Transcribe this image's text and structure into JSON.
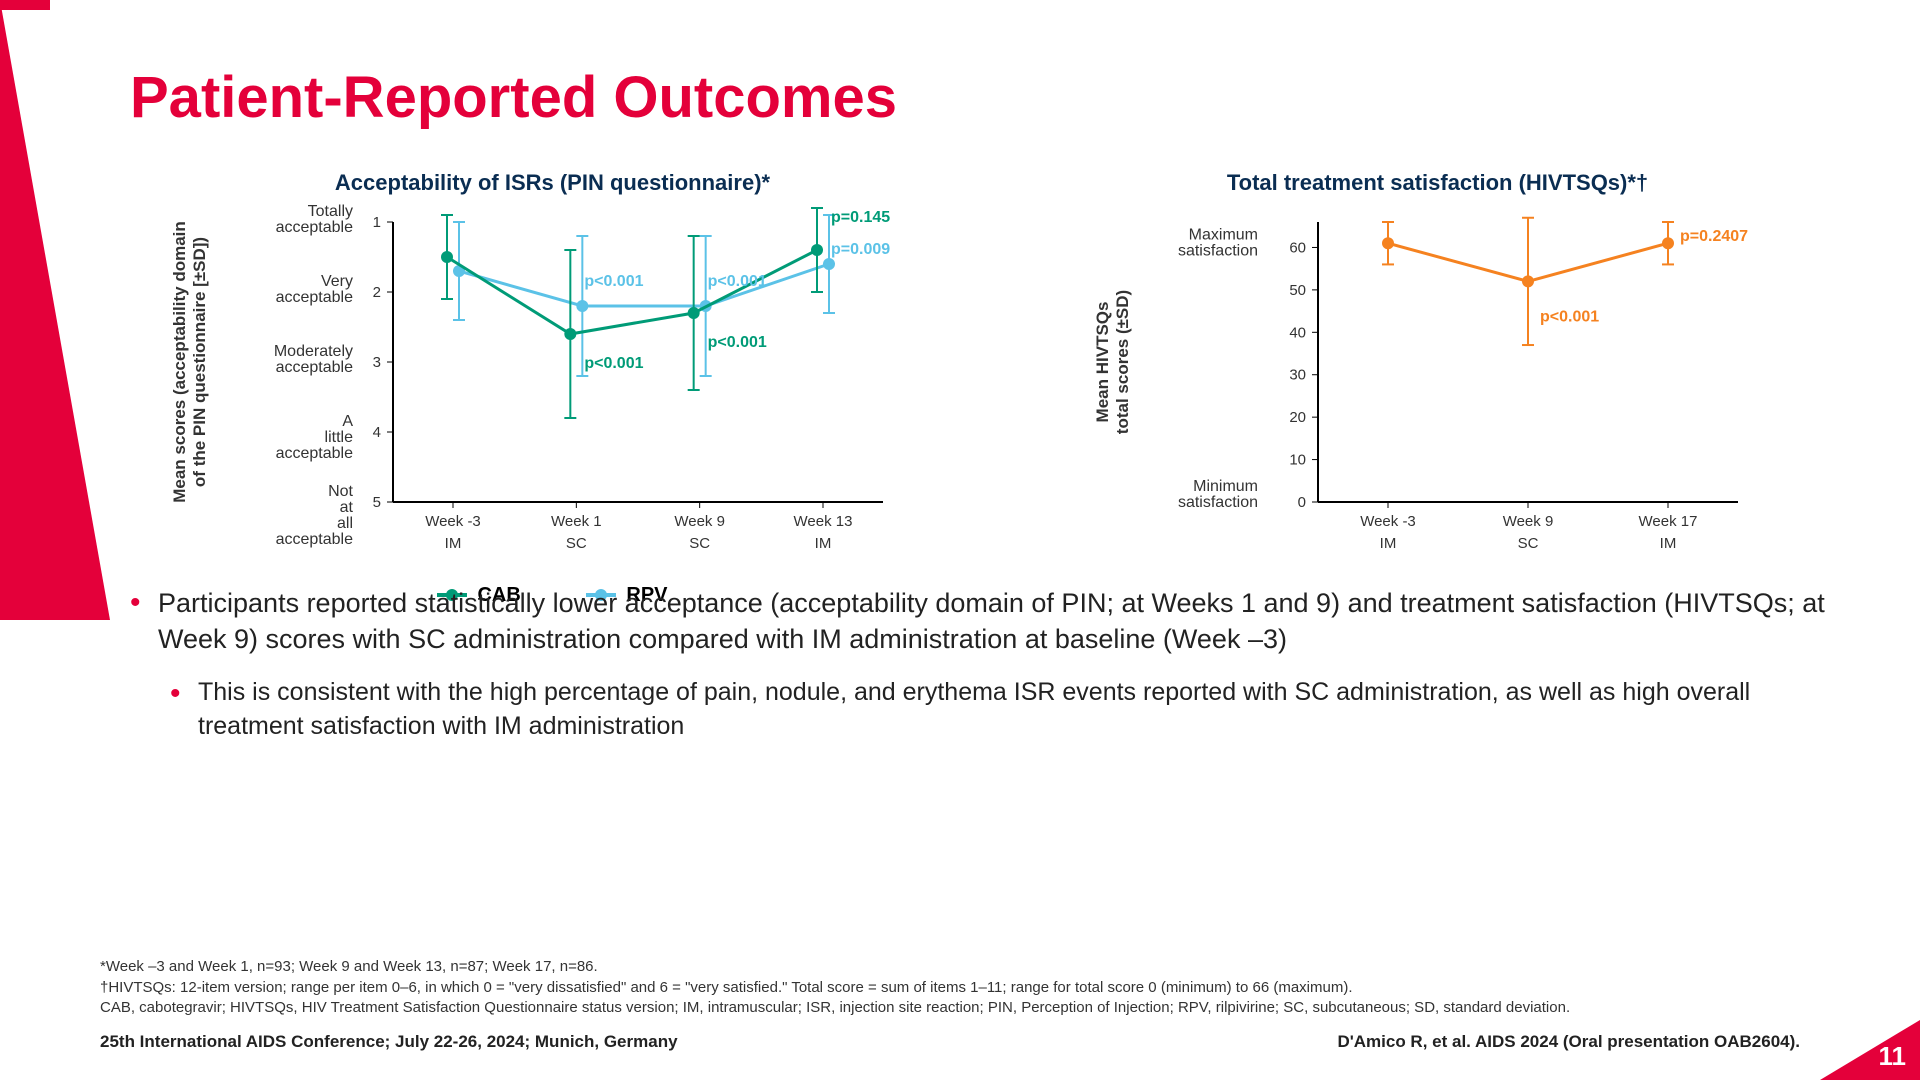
{
  "title": "Patient-Reported Outcomes",
  "page_number": "11",
  "colors": {
    "accent": "#e4003a",
    "cab": "#009b77",
    "rpv": "#5bc2e7",
    "hivtsq": "#f58220",
    "navy": "#0a2d52"
  },
  "chart1": {
    "title": "Acceptability of ISRs (PIN questionnaire)*",
    "y_axis_label": "Mean scores (acceptability domain\nof the PIN questionnaire [±SD])",
    "y_categories": [
      "Totally acceptable",
      "Very acceptable",
      "Moderately acceptable",
      "A little acceptable",
      "Not at all acceptable"
    ],
    "y_values": [
      1,
      2,
      3,
      4,
      5
    ],
    "x_labels": [
      "Week -3",
      "Week 1",
      "Week 9",
      "Week 13"
    ],
    "x_sub": [
      "IM",
      "SC",
      "SC",
      "IM"
    ],
    "series": {
      "CAB": {
        "color": "#009b77",
        "points": [
          1.5,
          2.6,
          2.3,
          1.4
        ],
        "err": [
          0.6,
          1.2,
          1.1,
          0.6
        ]
      },
      "RPV": {
        "color": "#5bc2e7",
        "points": [
          1.7,
          2.2,
          2.2,
          1.6
        ],
        "err": [
          0.7,
          1.0,
          1.0,
          0.7
        ]
      }
    },
    "p_values_cab": [
      "",
      "p<0.001",
      "p<0.001",
      "p=0.145"
    ],
    "p_values_rpv": [
      "",
      "p<0.001",
      "p<0.001",
      "p=0.009"
    ],
    "legend": [
      "CAB",
      "RPV"
    ]
  },
  "chart2": {
    "title": "Total treatment satisfaction (HIVTSQs)*†",
    "y_axis_label": "Mean HIVTSQs\ntotal scores (±SD)",
    "y_top_label": "Maximum satisfaction",
    "y_bottom_label": "Minimum satisfaction",
    "y_ticks": [
      0,
      10,
      20,
      30,
      40,
      50,
      60
    ],
    "x_labels": [
      "Week -3",
      "Week 9",
      "Week 17"
    ],
    "x_sub": [
      "IM",
      "SC",
      "IM"
    ],
    "series": {
      "color": "#f58220",
      "points": [
        61,
        52,
        61
      ],
      "err": [
        5,
        15,
        5
      ]
    },
    "p_values": [
      "",
      "p<0.001",
      "p=0.2407"
    ]
  },
  "bullets": [
    "Participants reported statistically lower acceptance (acceptability domain of PIN; at Weeks 1 and 9) and treatment satisfaction (HIVTSQs; at Week 9) scores with SC administration compared with IM administration at baseline (Week –3)",
    "This is consistent with the high percentage of pain, nodule, and erythema ISR events reported with SC administration, as well as high overall treatment satisfaction with IM administration"
  ],
  "footnotes": [
    "*Week –3 and Week 1, n=93; Week 9 and Week 13, n=87; Week 17, n=86.",
    "†HIVTSQs: 12-item version; range per item 0–6, in which 0 = \"very dissatisfied\" and 6 = \"very satisfied.\" Total score = sum of items 1–11; range for total score 0 (minimum) to 66 (maximum).",
    "CAB, cabotegravir; HIVTSQs, HIV Treatment Satisfaction Questionnaire status version; IM, intramuscular; ISR, injection site reaction; PIN, Perception of Injection; RPV, rilpivirine; SC, subcutaneous; SD, standard deviation."
  ],
  "footer_left": "25th International AIDS Conference; July 22-26, 2024; Munich, Germany",
  "footer_right": "D'Amico R, et al. AIDS 2024 (Oral presentation OAB2604)."
}
